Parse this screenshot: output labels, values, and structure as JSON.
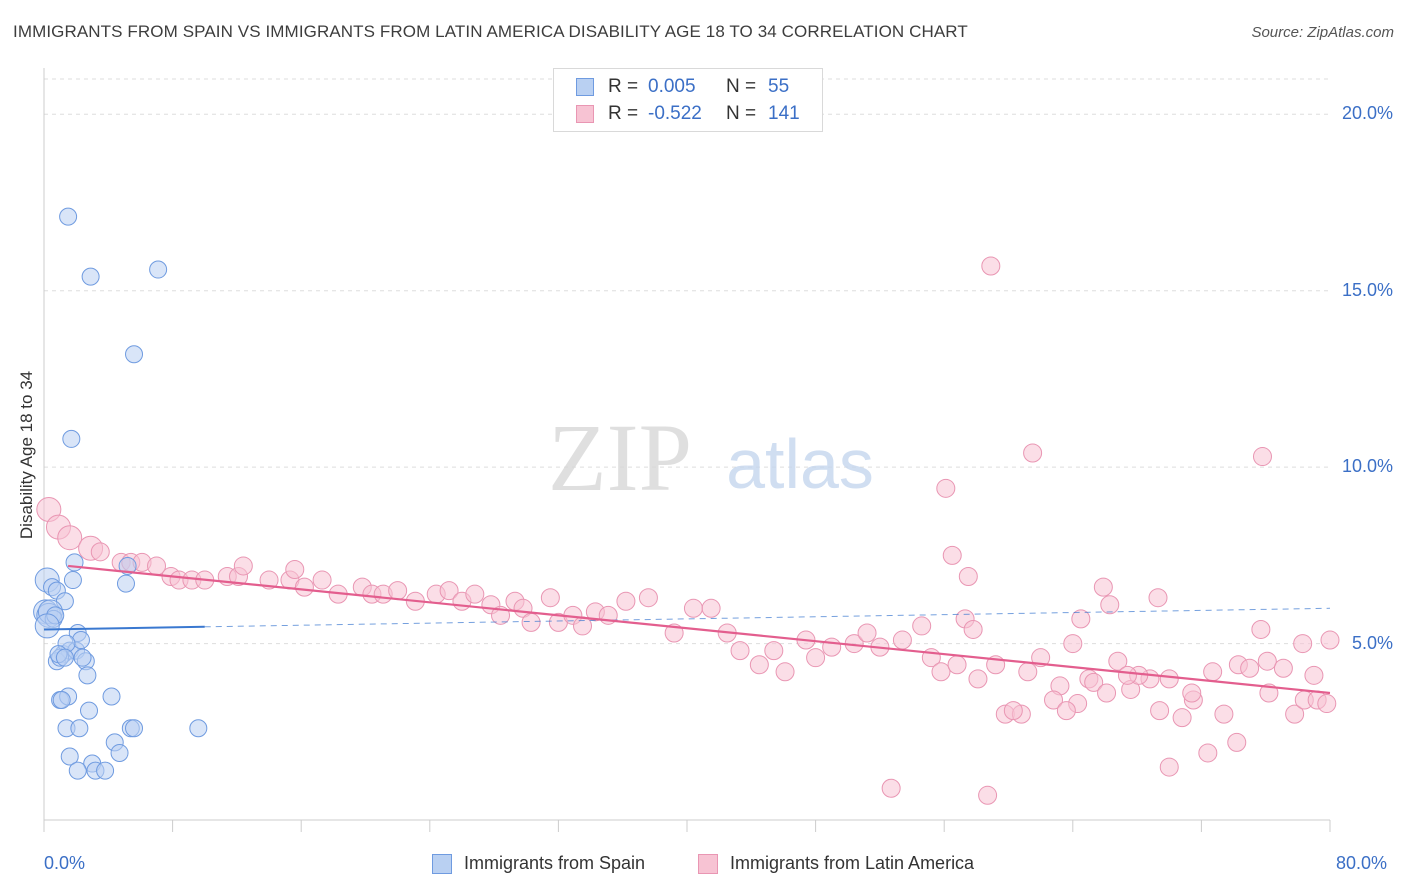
{
  "header": {
    "title": "IMMIGRANTS FROM SPAIN VS IMMIGRANTS FROM LATIN AMERICA DISABILITY AGE 18 TO 34 CORRELATION CHART",
    "source": "Source: ZipAtlas.com"
  },
  "watermark": {
    "zip": "ZIP",
    "atlas": "atlas"
  },
  "legend": {
    "r_label": "R =",
    "n_label": "N =",
    "spain": {
      "r": "0.005",
      "n": "55"
    },
    "latam": {
      "r": "-0.522",
      "n": "141"
    }
  },
  "colors": {
    "spain_fill": "#b9d0f2",
    "spain_stroke": "#6f9be0",
    "spain_line": "#3a78d0",
    "latam_fill": "#f7c3d3",
    "latam_stroke": "#e996b3",
    "latam_line": "#e35e8e",
    "tick_text": "#3b6fc6",
    "grid": "#dddddd"
  },
  "chart_data": {
    "type": "scatter",
    "title": "IMMIGRANTS FROM SPAIN VS IMMIGRANTS FROM LATIN AMERICA DISABILITY AGE 18 TO 34 CORRELATION CHART",
    "xlabel": "",
    "ylabel": "Disability Age 18 to 34",
    "xlim": [
      0,
      80
    ],
    "ylim": [
      0,
      21
    ],
    "x_tick_labels": [
      "0.0%",
      "80.0%"
    ],
    "y_ticks": [
      5,
      10,
      15,
      20
    ],
    "y_tick_labels": [
      "5.0%",
      "10.0%",
      "15.0%",
      "20.0%"
    ],
    "grid": true,
    "legend_position": "top-center",
    "series": [
      {
        "name": "Immigrants from Spain",
        "r": 0.005,
        "n": 55,
        "trend": {
          "x0": 0,
          "y0": 5.4,
          "x1": 80,
          "y1": 6.0,
          "solid_until": 10
        },
        "points": [
          [
            1.5,
            17.1
          ],
          [
            2.9,
            15.4
          ],
          [
            7.1,
            15.6
          ],
          [
            5.6,
            13.2
          ],
          [
            1.7,
            10.8
          ],
          [
            0.2,
            6.8
          ],
          [
            0.5,
            6.6
          ],
          [
            0.8,
            6.5
          ],
          [
            1.3,
            6.2
          ],
          [
            1.8,
            6.8
          ],
          [
            1.9,
            7.3
          ],
          [
            5.2,
            7.2
          ],
          [
            5.1,
            6.7
          ],
          [
            0.1,
            5.9
          ],
          [
            0.3,
            5.8
          ],
          [
            0.4,
            5.9
          ],
          [
            0.6,
            5.7
          ],
          [
            0.7,
            5.8
          ],
          [
            0.2,
            5.5
          ],
          [
            1.2,
            4.7
          ],
          [
            1.6,
            4.8
          ],
          [
            2.0,
            4.8
          ],
          [
            2.1,
            5.3
          ],
          [
            2.3,
            5.1
          ],
          [
            1.4,
            5.0
          ],
          [
            0.8,
            4.5
          ],
          [
            1.0,
            4.6
          ],
          [
            0.9,
            4.7
          ],
          [
            1.3,
            4.6
          ],
          [
            2.6,
            4.5
          ],
          [
            2.4,
            4.6
          ],
          [
            2.7,
            4.1
          ],
          [
            1.0,
            3.4
          ],
          [
            1.5,
            3.5
          ],
          [
            1.1,
            3.4
          ],
          [
            4.2,
            3.5
          ],
          [
            2.8,
            3.1
          ],
          [
            1.4,
            2.6
          ],
          [
            2.2,
            2.6
          ],
          [
            5.4,
            2.6
          ],
          [
            5.6,
            2.6
          ],
          [
            9.6,
            2.6
          ],
          [
            4.4,
            2.2
          ],
          [
            4.7,
            1.9
          ],
          [
            1.6,
            1.8
          ],
          [
            3.0,
            1.6
          ],
          [
            3.2,
            1.4
          ],
          [
            3.8,
            1.4
          ],
          [
            2.1,
            1.4
          ]
        ]
      },
      {
        "name": "Immigrants from Latin America",
        "r": -0.522,
        "n": 141,
        "trend": {
          "x0": 1.5,
          "y0": 7.2,
          "x1": 80,
          "y1": 3.6
        },
        "points": [
          [
            0.3,
            8.8
          ],
          [
            0.9,
            8.3
          ],
          [
            1.6,
            8.0
          ],
          [
            2.9,
            7.7
          ],
          [
            3.5,
            7.6
          ],
          [
            4.8,
            7.3
          ],
          [
            5.4,
            7.3
          ],
          [
            6.1,
            7.3
          ],
          [
            7.0,
            7.2
          ],
          [
            7.9,
            6.9
          ],
          [
            8.4,
            6.8
          ],
          [
            9.2,
            6.8
          ],
          [
            10.0,
            6.8
          ],
          [
            11.4,
            6.9
          ],
          [
            12.1,
            6.9
          ],
          [
            12.4,
            7.2
          ],
          [
            14.0,
            6.8
          ],
          [
            15.3,
            6.8
          ],
          [
            15.6,
            7.1
          ],
          [
            16.2,
            6.6
          ],
          [
            17.3,
            6.8
          ],
          [
            18.3,
            6.4
          ],
          [
            19.8,
            6.6
          ],
          [
            20.4,
            6.4
          ],
          [
            21.1,
            6.4
          ],
          [
            22.0,
            6.5
          ],
          [
            23.1,
            6.2
          ],
          [
            24.4,
            6.4
          ],
          [
            25.2,
            6.5
          ],
          [
            26.0,
            6.2
          ],
          [
            26.8,
            6.4
          ],
          [
            27.8,
            6.1
          ],
          [
            28.4,
            5.8
          ],
          [
            29.3,
            6.2
          ],
          [
            29.8,
            6.0
          ],
          [
            30.3,
            5.6
          ],
          [
            31.5,
            6.3
          ],
          [
            32.0,
            5.6
          ],
          [
            32.9,
            5.8
          ],
          [
            33.5,
            5.5
          ],
          [
            34.3,
            5.9
          ],
          [
            35.1,
            5.8
          ],
          [
            36.2,
            6.2
          ],
          [
            37.6,
            6.3
          ],
          [
            39.2,
            5.3
          ],
          [
            40.4,
            6.0
          ],
          [
            41.5,
            6.0
          ],
          [
            42.5,
            5.3
          ],
          [
            43.3,
            4.8
          ],
          [
            44.5,
            4.4
          ],
          [
            45.4,
            4.8
          ],
          [
            46.1,
            4.2
          ],
          [
            47.4,
            5.1
          ],
          [
            48.0,
            4.6
          ],
          [
            49.0,
            4.9
          ],
          [
            50.4,
            5.0
          ],
          [
            51.2,
            5.3
          ],
          [
            52.0,
            4.9
          ],
          [
            53.4,
            5.1
          ],
          [
            54.6,
            5.5
          ],
          [
            55.2,
            4.6
          ],
          [
            55.8,
            4.2
          ],
          [
            56.8,
            4.4
          ],
          [
            57.3,
            5.7
          ],
          [
            57.8,
            5.4
          ],
          [
            58.1,
            4.0
          ],
          [
            59.2,
            4.4
          ],
          [
            59.8,
            3.0
          ],
          [
            60.8,
            3.0
          ],
          [
            61.2,
            4.2
          ],
          [
            62.0,
            4.6
          ],
          [
            63.2,
            3.8
          ],
          [
            64.0,
            5.0
          ],
          [
            64.5,
            5.7
          ],
          [
            65.0,
            4.0
          ],
          [
            65.9,
            6.6
          ],
          [
            66.3,
            6.1
          ],
          [
            66.8,
            4.5
          ],
          [
            67.6,
            3.7
          ],
          [
            68.8,
            4.0
          ],
          [
            69.3,
            6.3
          ],
          [
            70.0,
            4.0
          ],
          [
            70.8,
            2.9
          ],
          [
            71.5,
            3.4
          ],
          [
            72.7,
            4.2
          ],
          [
            74.3,
            4.4
          ],
          [
            75.0,
            4.3
          ],
          [
            76.1,
            4.5
          ],
          [
            77.8,
            3.0
          ],
          [
            78.4,
            3.4
          ],
          [
            79.2,
            3.4
          ],
          [
            79.8,
            3.3
          ],
          [
            60.3,
            3.1
          ],
          [
            75.7,
            5.4
          ],
          [
            65.3,
            3.9
          ],
          [
            78.3,
            5.0
          ]
        ]
      }
    ],
    "extra_latam_points": [
      [
        58.9,
        15.7
      ],
      [
        61.5,
        10.4
      ],
      [
        56.1,
        9.4
      ],
      [
        75.8,
        10.3
      ],
      [
        56.5,
        7.5
      ],
      [
        57.5,
        6.9
      ],
      [
        80.0,
        5.1
      ],
      [
        58.7,
        0.7
      ],
      [
        52.7,
        0.9
      ],
      [
        70.0,
        1.5
      ],
      [
        72.4,
        1.9
      ],
      [
        74.2,
        2.2
      ],
      [
        68.1,
        4.1
      ],
      [
        67.4,
        4.1
      ],
      [
        73.4,
        3.0
      ],
      [
        71.4,
        3.6
      ],
      [
        77.1,
        4.3
      ],
      [
        66.1,
        3.6
      ],
      [
        62.8,
        3.4
      ],
      [
        64.3,
        3.3
      ],
      [
        63.6,
        3.1
      ],
      [
        69.4,
        3.1
      ],
      [
        76.2,
        3.6
      ],
      [
        79.0,
        4.1
      ]
    ]
  },
  "bottom_legend": {
    "spain_label": "Immigrants from Spain",
    "latam_label": "Immigrants from Latin America"
  }
}
